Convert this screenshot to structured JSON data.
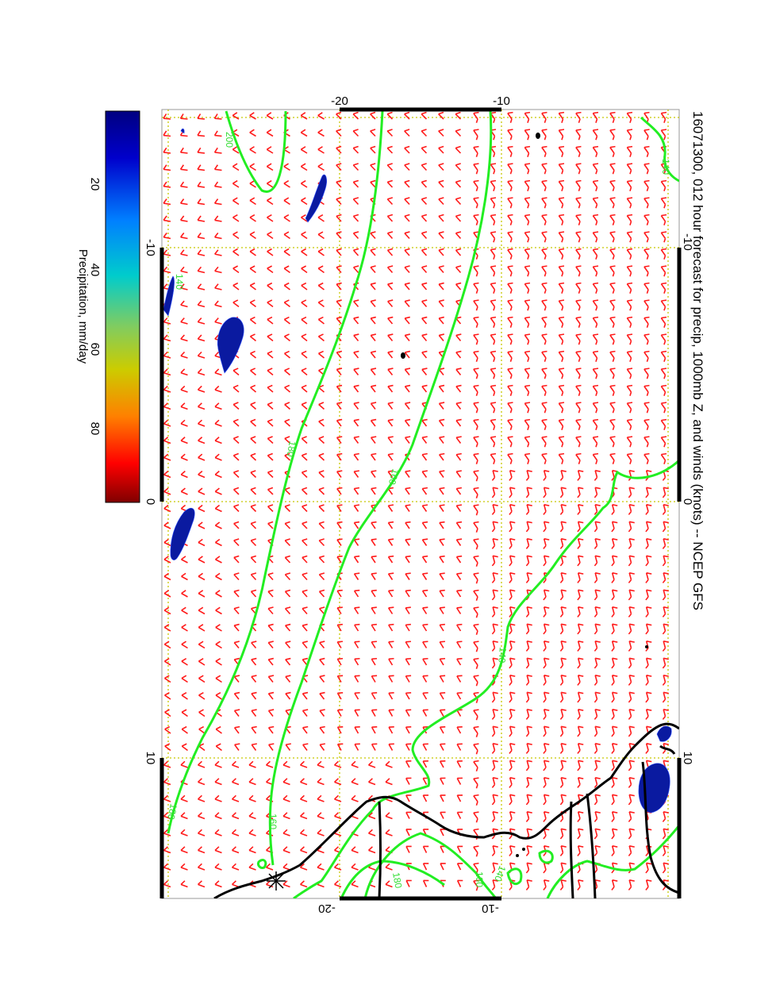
{
  "title": "16071300, 012 hour forecast for precip, 1000mb Z, and winds (knots) -- NCEP GFS",
  "colorbar": {
    "label": "Precipitation, mm/day",
    "ticks": [
      "20",
      "40",
      "60",
      "80"
    ],
    "stops": [
      "#000080",
      "#0000cc",
      "#0080ff",
      "#00cccc",
      "#80cc60",
      "#cccc00",
      "#ff8000",
      "#ff0000",
      "#800000"
    ]
  },
  "axes": {
    "top_ticks": [
      "-20",
      "-10"
    ],
    "bottom_ticks": [
      "-20",
      "-10"
    ],
    "left_ticks": [
      "-10",
      "0",
      "10"
    ],
    "right_ticks": [
      "-10",
      "0",
      "10"
    ]
  },
  "contour_labels": [
    "200",
    "180",
    "160",
    "140",
    "160",
    "180",
    "140",
    "180",
    "160",
    "140",
    "140"
  ],
  "colors": {
    "contour": "#22ee22",
    "wind": "#ff1a1a",
    "precip": "#0a1aa0",
    "grid": "#c8c800",
    "coast": "#000000"
  }
}
